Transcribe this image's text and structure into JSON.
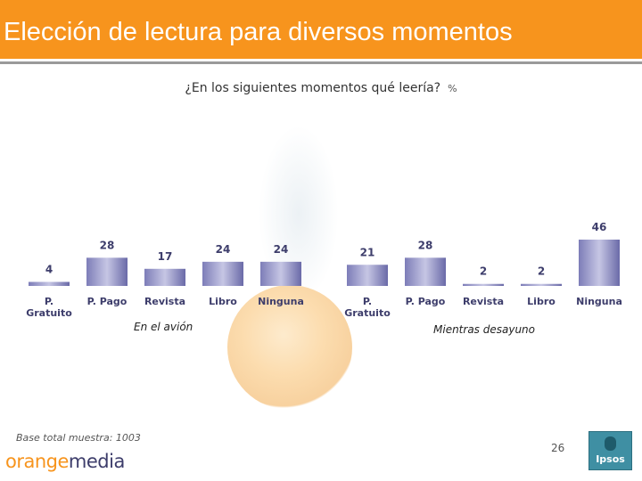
{
  "header": {
    "title": "Elección de lectura para diversos momentos"
  },
  "subtitle": {
    "question": "¿En los siguientes momentos qué leería?",
    "unit": "%"
  },
  "chart_data": {
    "type": "bar",
    "ylim": [
      0,
      46
    ],
    "groups": [
      {
        "name": "En el avión",
        "categories": [
          "P. Gratuito",
          "P. Pago",
          "Revista",
          "Libro",
          "Ninguna"
        ],
        "values": [
          4,
          28,
          17,
          24,
          24
        ]
      },
      {
        "name": "Mientras desayuno",
        "categories": [
          "P. Gratuito",
          "P. Pago",
          "Revista",
          "Libro",
          "Ninguna"
        ],
        "values": [
          21,
          28,
          2,
          2,
          46
        ]
      }
    ]
  },
  "colors": {
    "header": "#f7941d",
    "bar": "#5b5b9a"
  },
  "footer": {
    "base_note": "Base total muestra: 1003",
    "page_number": "26",
    "brand_part1": "orange",
    "brand_part2": "media",
    "ipsos_label": "Ipsos"
  }
}
